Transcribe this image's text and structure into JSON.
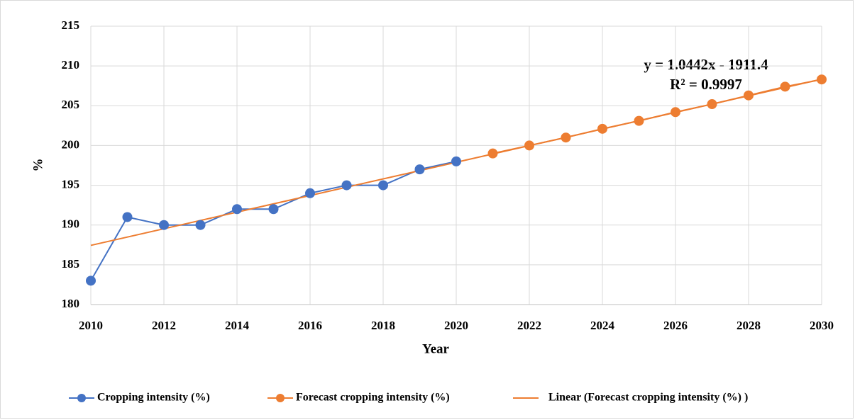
{
  "chart_data": {
    "type": "line",
    "x_label": "Year",
    "y_label": "%",
    "x": [
      2010,
      2011,
      2012,
      2013,
      2014,
      2015,
      2016,
      2017,
      2018,
      2019,
      2020,
      2021,
      2022,
      2023,
      2024,
      2025,
      2026,
      2027,
      2028,
      2029,
      2030
    ],
    "series": [
      {
        "name": "Cropping intensity (%)",
        "color": "#4472c4",
        "values": [
          183,
          191,
          190,
          190,
          192,
          192,
          194,
          195,
          195,
          197,
          198,
          null,
          null,
          null,
          null,
          null,
          null,
          null,
          null,
          null,
          null
        ]
      },
      {
        "name": "Forecast cropping intensity (%)",
        "color": "#ed7d31",
        "values": [
          null,
          null,
          null,
          null,
          null,
          null,
          null,
          null,
          null,
          null,
          null,
          199,
          200,
          201,
          202.1,
          203.1,
          204.2,
          205.2,
          206.3,
          207.4,
          208.3
        ]
      }
    ],
    "trendline": {
      "name": "Linear (Forecast cropping intensity (%) )",
      "color": "#ed7d31",
      "x": [
        2010,
        2030
      ],
      "values": [
        187.44,
        208.34
      ],
      "equation": "y = 1.0442x - 1911.4",
      "r_squared": "R² = 0.9997"
    },
    "xlim": [
      2010,
      2030
    ],
    "xticks": [
      2010,
      2012,
      2014,
      2016,
      2018,
      2020,
      2022,
      2024,
      2026,
      2028,
      2030
    ],
    "ylim": [
      180,
      215
    ],
    "yticks": [
      180,
      185,
      190,
      195,
      200,
      205,
      210,
      215
    ],
    "grid": true,
    "legend": "bottom"
  }
}
